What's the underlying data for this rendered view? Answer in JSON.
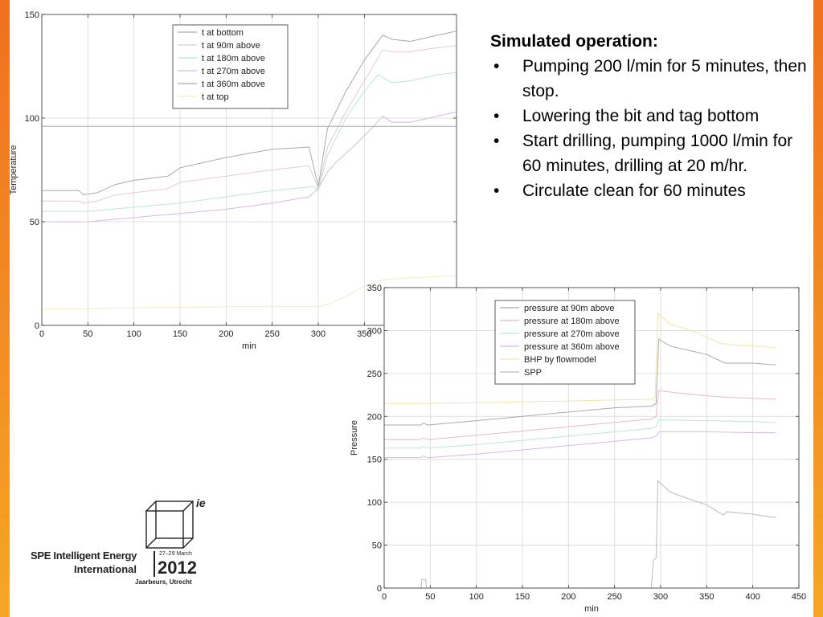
{
  "bullets": {
    "heading": "Simulated operation:",
    "items": [
      "Pumping 200 l/min for 5 minutes, then stop.",
      "Lowering the bit and tag bottom",
      "Start drilling, pumping 1000 l/min for 60 minutes, drilling at 20 m/hr.",
      "Circulate clean for 60 minutes"
    ],
    "bullet_char": "•"
  },
  "logo": {
    "mark": "ie",
    "name_line1": "SPE Intelligent Energy",
    "name_line2": "International",
    "dates": "27–29 March",
    "year": "2012",
    "place": "Jaarbeurs, Utrecht"
  },
  "chart_data": [
    {
      "type": "line",
      "xlabel": "min",
      "ylabel": "Temperature",
      "xlim": [
        0,
        450
      ],
      "ylim": [
        0,
        150
      ],
      "xticks": [
        0,
        50,
        100,
        150,
        200,
        250,
        300,
        350
      ],
      "yticks": [
        0,
        50,
        100,
        150
      ],
      "grid": true,
      "legend": "top-center",
      "series": [
        {
          "name": "t at bottom",
          "color": "#aaaaaa",
          "points": [
            [
              0,
              65
            ],
            [
              40,
              65
            ],
            [
              45,
              63
            ],
            [
              60,
              64
            ],
            [
              80,
              68
            ],
            [
              100,
              70
            ],
            [
              120,
              71
            ],
            [
              137,
              72
            ],
            [
              150,
              76
            ],
            [
              200,
              81
            ],
            [
              250,
              85
            ],
            [
              290,
              86
            ],
            [
              300,
              67
            ],
            [
              310,
              95
            ],
            [
              330,
              113
            ],
            [
              350,
              128
            ],
            [
              370,
              140
            ],
            [
              380,
              138
            ],
            [
              400,
              137
            ],
            [
              430,
              140
            ],
            [
              450,
              142
            ]
          ]
        },
        {
          "name": "t at 90m above",
          "color": "#e8c8d8",
          "points": [
            [
              0,
              60
            ],
            [
              40,
              60
            ],
            [
              45,
              59
            ],
            [
              60,
              60
            ],
            [
              80,
              63
            ],
            [
              100,
              64
            ],
            [
              137,
              66
            ],
            [
              150,
              69
            ],
            [
              200,
              72
            ],
            [
              250,
              75
            ],
            [
              290,
              77
            ],
            [
              300,
              66
            ],
            [
              310,
              86
            ],
            [
              330,
              103
            ],
            [
              350,
              118
            ],
            [
              370,
              133
            ],
            [
              380,
              132
            ],
            [
              400,
              132
            ],
            [
              430,
              134
            ],
            [
              450,
              135
            ]
          ]
        },
        {
          "name": "t at 180m above",
          "color": "#b8e8d8",
          "points": [
            [
              0,
              55
            ],
            [
              40,
              55
            ],
            [
              50,
              55
            ],
            [
              100,
              57
            ],
            [
              150,
              59
            ],
            [
              200,
              62
            ],
            [
              250,
              65
            ],
            [
              295,
              67
            ],
            [
              300,
              65
            ],
            [
              310,
              82
            ],
            [
              330,
              100
            ],
            [
              350,
              113
            ],
            [
              365,
              121
            ],
            [
              380,
              117
            ],
            [
              400,
              118
            ],
            [
              430,
              121
            ],
            [
              450,
              122
            ]
          ]
        },
        {
          "name": "t at 270m above",
          "color": "#d8b8e8",
          "points": [
            [
              0,
              50
            ],
            [
              40,
              50
            ],
            [
              50,
              50
            ],
            [
              100,
              52
            ],
            [
              150,
              54
            ],
            [
              200,
              56
            ],
            [
              250,
              59
            ],
            [
              290,
              62
            ],
            [
              300,
              66
            ],
            [
              310,
              74
            ],
            [
              320,
              79
            ],
            [
              340,
              87
            ],
            [
              360,
              96
            ],
            [
              370,
              101
            ],
            [
              380,
              98
            ],
            [
              400,
              98
            ],
            [
              430,
              101
            ],
            [
              450,
              103
            ]
          ]
        },
        {
          "name": "t at 360m above",
          "color": "#aaaaaa",
          "points": [
            [
              0,
              96
            ],
            [
              40,
              96
            ],
            [
              100,
              96
            ],
            [
              200,
              96
            ],
            [
              290,
              96
            ],
            [
              300,
              96
            ],
            [
              350,
              96
            ],
            [
              400,
              96
            ],
            [
              450,
              96
            ]
          ]
        },
        {
          "name": "t at top",
          "color": "#f0ecc0",
          "points": [
            [
              0,
              8
            ],
            [
              40,
              8
            ],
            [
              100,
              8.5
            ],
            [
              200,
              9
            ],
            [
              300,
              9
            ],
            [
              310,
              10
            ],
            [
              330,
              14
            ],
            [
              350,
              19
            ],
            [
              370,
              22
            ],
            [
              400,
              23
            ],
            [
              450,
              24
            ]
          ]
        }
      ]
    },
    {
      "type": "line",
      "xlabel": "min",
      "ylabel": "Pressure",
      "xlim": [
        0,
        450
      ],
      "ylim": [
        0,
        350
      ],
      "xticks": [
        0,
        50,
        100,
        150,
        200,
        250,
        300,
        350,
        400,
        450
      ],
      "yticks": [
        0,
        50,
        100,
        150,
        200,
        250,
        300,
        350
      ],
      "grid": true,
      "legend": "top-center",
      "series": [
        {
          "name": "pressure at 90m above",
          "color": "#aaaaaa",
          "points": [
            [
              0,
              190
            ],
            [
              40,
              190
            ],
            [
              42,
              192
            ],
            [
              48,
              190
            ],
            [
              100,
              195
            ],
            [
              150,
              200
            ],
            [
              200,
              205
            ],
            [
              250,
              210
            ],
            [
              290,
              212
            ],
            [
              295,
              215
            ],
            [
              298,
              290
            ],
            [
              310,
              282
            ],
            [
              330,
              277
            ],
            [
              350,
              272
            ],
            [
              370,
              262
            ],
            [
              400,
              262
            ],
            [
              425,
              260
            ]
          ]
        },
        {
          "name": "pressure at 180m above",
          "color": "#e8b8c8",
          "points": [
            [
              0,
              173
            ],
            [
              40,
              173
            ],
            [
              42,
              175
            ],
            [
              48,
              173
            ],
            [
              100,
              178
            ],
            [
              150,
              183
            ],
            [
              200,
              188
            ],
            [
              250,
              193
            ],
            [
              290,
              197
            ],
            [
              295,
              200
            ],
            [
              298,
              230
            ],
            [
              320,
              227
            ],
            [
              350,
              224
            ],
            [
              375,
              222
            ],
            [
              400,
              221
            ],
            [
              425,
              220
            ]
          ]
        },
        {
          "name": "pressure at 270m above",
          "color": "#b8e8d8",
          "points": [
            [
              0,
              163
            ],
            [
              40,
              163
            ],
            [
              42,
              165
            ],
            [
              48,
              163
            ],
            [
              100,
              167
            ],
            [
              150,
              172
            ],
            [
              200,
              177
            ],
            [
              250,
              182
            ],
            [
              290,
              186
            ],
            [
              295,
              188
            ],
            [
              298,
              196
            ],
            [
              350,
              195
            ],
            [
              400,
              194
            ],
            [
              425,
              193
            ]
          ]
        },
        {
          "name": "pressure at 360m above",
          "color": "#d8b8e8",
          "points": [
            [
              0,
              152
            ],
            [
              40,
              152
            ],
            [
              42,
              154
            ],
            [
              48,
              152
            ],
            [
              100,
              156
            ],
            [
              150,
              161
            ],
            [
              200,
              166
            ],
            [
              250,
              171
            ],
            [
              290,
              175
            ],
            [
              295,
              177
            ],
            [
              298,
              182
            ],
            [
              350,
              182
            ],
            [
              400,
              181
            ],
            [
              425,
              181
            ]
          ]
        },
        {
          "name": "BHP by flowmodel",
          "color": "#f0e6a8",
          "points": [
            [
              0,
              215
            ],
            [
              40,
              215
            ],
            [
              100,
              216
            ],
            [
              200,
              218
            ],
            [
              290,
              220
            ],
            [
              294,
              222
            ],
            [
              297,
              320
            ],
            [
              310,
              308
            ],
            [
              340,
              297
            ],
            [
              365,
              285
            ],
            [
              380,
              283
            ],
            [
              400,
              282
            ],
            [
              425,
              280
            ]
          ]
        },
        {
          "name": "SPP",
          "color": "#bbbbbb",
          "points": [
            [
              0,
              0
            ],
            [
              40,
              0
            ],
            [
              41,
              10
            ],
            [
              45,
              10
            ],
            [
              46,
              0
            ],
            [
              290,
              0
            ],
            [
              292,
              32
            ],
            [
              295,
              35
            ],
            [
              297,
              125
            ],
            [
              310,
              112
            ],
            [
              330,
              104
            ],
            [
              350,
              97
            ],
            [
              368,
              85
            ],
            [
              372,
              89
            ],
            [
              400,
              86
            ],
            [
              425,
              82
            ]
          ]
        }
      ]
    }
  ]
}
